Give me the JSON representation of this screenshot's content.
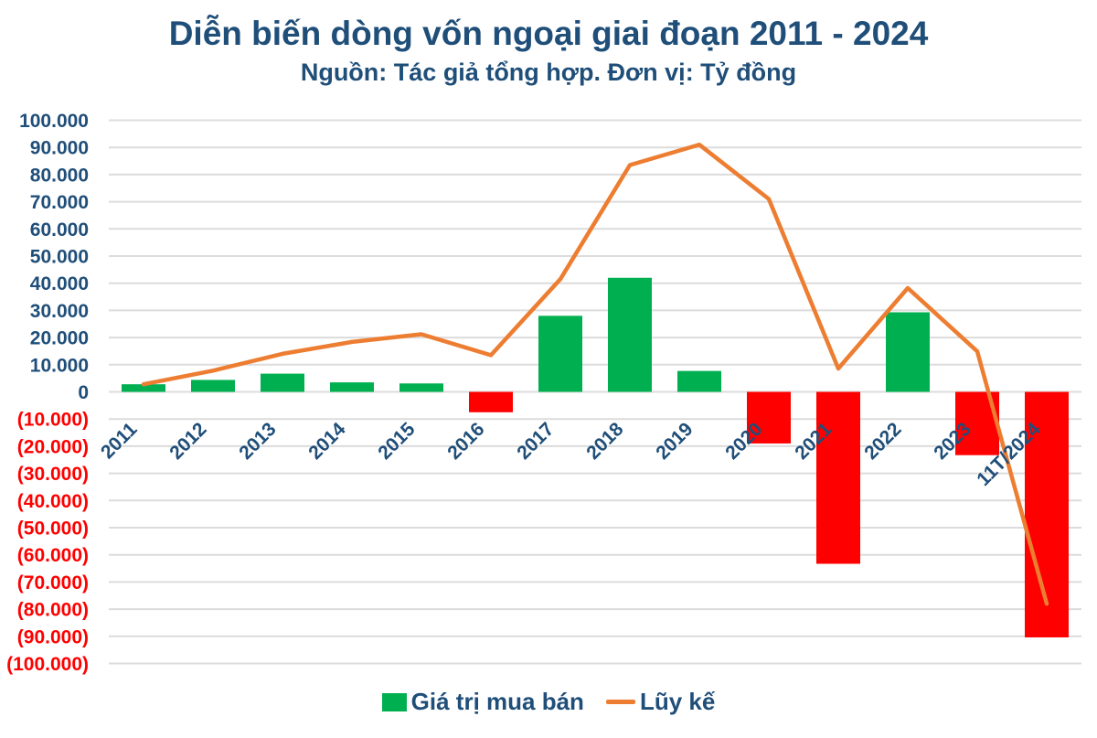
{
  "chart_data": {
    "type": "combo-bar-line",
    "title": "Diễn biến dòng vốn ngoại giai đoạn 2011 - 2024",
    "subtitle": "Nguồn: Tác giả tổng hợp. Đơn vị: Tỷ đồng",
    "categories": [
      "2011",
      "2012",
      "2013",
      "2014",
      "2015",
      "2016",
      "2017",
      "2018",
      "2019",
      "2020",
      "2021",
      "2022",
      "2023",
      "11T/2024"
    ],
    "series": [
      {
        "name": "Giá trị mua bán",
        "type": "bar",
        "values": [
          2800,
          4400,
          6700,
          3500,
          3100,
          -7500,
          28000,
          42000,
          7700,
          -19000,
          -63300,
          29300,
          -23300,
          -90400
        ]
      },
      {
        "name": "Lũy kế",
        "type": "line",
        "values": [
          2800,
          7800,
          14000,
          18400,
          21200,
          13500,
          41500,
          83500,
          91000,
          71000,
          8600,
          38200,
          14900,
          -78000
        ]
      }
    ],
    "ylim": [
      -100000,
      100000
    ],
    "ytick_step": 10000,
    "grid": true,
    "legend_position": "bottom",
    "y_tick_format": "thousands-dot, negatives in red parentheses",
    "colors": {
      "bar_positive": "#00B050",
      "bar_negative": "#FF0000",
      "line": "#ED7D31",
      "axis_text": "#1F4E79",
      "axis_text_negative": "#FF0000",
      "grid": "#DCDCDC",
      "title": "#1F4E79"
    }
  }
}
